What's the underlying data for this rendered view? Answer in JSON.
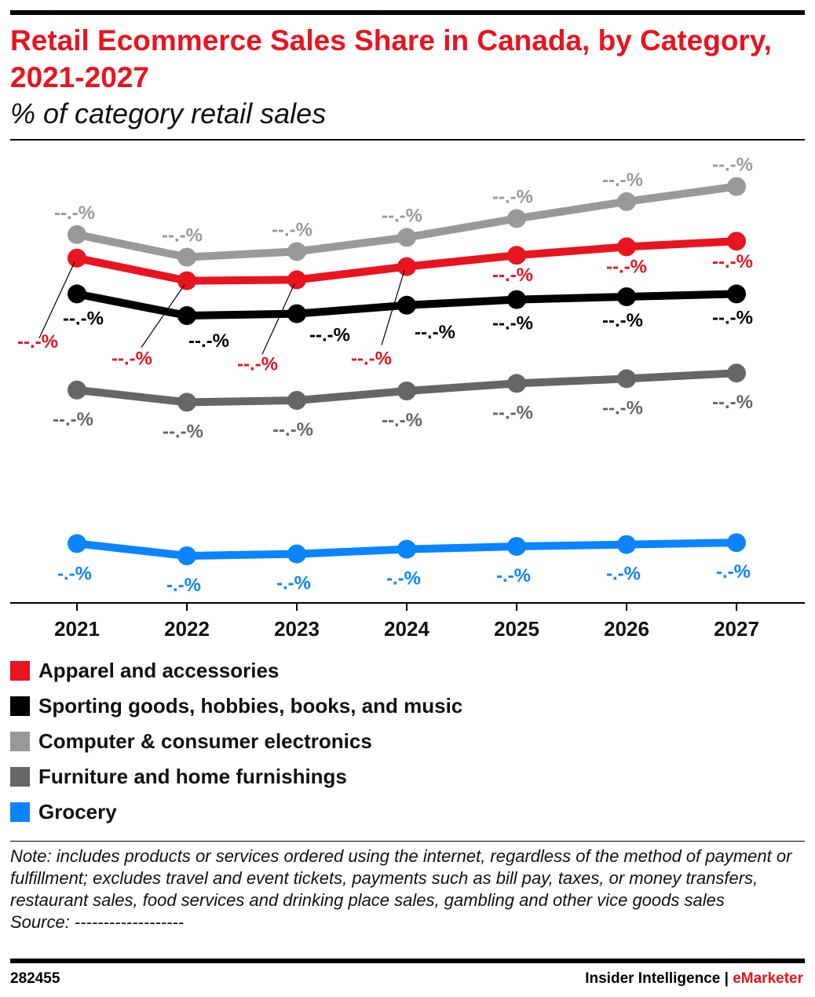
{
  "title": "Retail Ecommerce Sales Share in Canada, by Category, 2021-2027",
  "subtitle": "% of category retail sales",
  "chart_data": {
    "type": "line",
    "title": "Retail Ecommerce Sales Share in Canada, by Category, 2021-2027",
    "subtitle": "% of category retail sales",
    "x": [
      "2021",
      "2022",
      "2023",
      "2024",
      "2025",
      "2026",
      "2027"
    ],
    "ylim": [
      0,
      49
    ],
    "y_axis_visible": false,
    "grid": false,
    "legend_position": "bottom",
    "values_estimated_no_axis": true,
    "series": [
      {
        "name": "Apparel and accessories",
        "color": "#e8141f",
        "values": [
          36.6,
          34.2,
          34.3,
          35.7,
          36.9,
          37.8,
          38.4
        ],
        "labels": [
          "--.-%",
          "--.-%",
          "--.-%",
          "--.-%",
          "--.-%",
          "--.-%",
          "--.-%"
        ]
      },
      {
        "name": "Sporting goods, hobbies, books, and music",
        "color": "#000000",
        "values": [
          32.8,
          30.5,
          30.7,
          31.6,
          32.2,
          32.5,
          32.8
        ],
        "labels": [
          "--.-%",
          "--.-%",
          "--.-%",
          "--.-%",
          "--.-%",
          "--.-%",
          "--.-%"
        ]
      },
      {
        "name": "Computer & consumer electronics",
        "color": "#999999",
        "values": [
          39.1,
          36.7,
          37.3,
          38.8,
          40.8,
          42.6,
          44.2
        ],
        "labels": [
          "--.-%",
          "--.-%",
          "--.-%",
          "--.-%",
          "--.-%",
          "--.-%",
          "--.-%"
        ]
      },
      {
        "name": "Furniture and home furnishings",
        "color": "#666666",
        "values": [
          22.6,
          21.3,
          21.5,
          22.5,
          23.3,
          23.8,
          24.4
        ],
        "labels": [
          "--.-%",
          "--.-%",
          "--.-%",
          "--.-%",
          "--.-%",
          "--.-%",
          "--.-%"
        ]
      },
      {
        "name": "Grocery",
        "color": "#0a84ff",
        "values": [
          6.3,
          5.0,
          5.2,
          5.7,
          6.0,
          6.2,
          6.4
        ],
        "labels": [
          "-.-%",
          "-.-%",
          "-.-%",
          "-.-%",
          "-.-%",
          "-.-%",
          "-.-%"
        ]
      }
    ]
  },
  "note": "Note: includes products or services ordered using the internet, regardless of the method of payment or fulfillment; excludes travel and event tickets, payments such as bill pay, taxes, or money transfers, restaurant sales, food services and drinking place sales, gambling and other vice goods sales",
  "source": "Source: -------------------",
  "footer": {
    "id": "282455",
    "brand_left": "Insider Intelligence | ",
    "brand_right": "eMarketer",
    "brand_accent": "#e8141f"
  }
}
